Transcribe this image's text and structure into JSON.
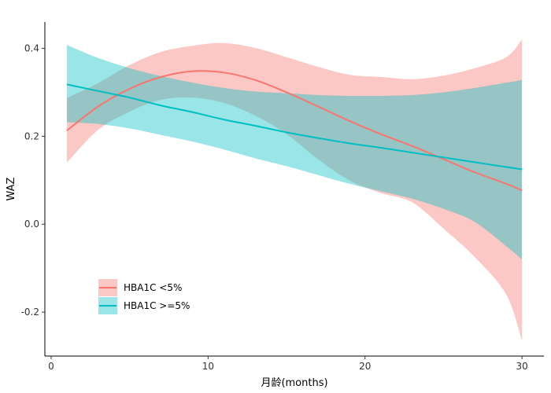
{
  "chart_data": {
    "type": "line",
    "xlabel": "月龄(months)",
    "ylabel": "WAZ",
    "xlim": [
      -0.4,
      31.4
    ],
    "ylim": [
      -0.3,
      0.46
    ],
    "x_ticks": [
      0,
      10,
      20,
      30
    ],
    "y_ticks": [
      -0.2,
      0.0,
      0.2,
      0.4
    ],
    "x_tick_labels": [
      "0",
      "10",
      "20",
      "30"
    ],
    "y_tick_labels": [
      "-0.2",
      "0.0",
      "0.2",
      "0.4"
    ],
    "grid": false,
    "legend_position": "bottom-left",
    "series": [
      {
        "name": "HBA1C <5%",
        "color": "#F8766D",
        "band_color": "#F8766D",
        "x": [
          1,
          3,
          5,
          7,
          9,
          11,
          13,
          15,
          17,
          19,
          21,
          23,
          25,
          27,
          29,
          30
        ],
        "y": [
          0.213,
          0.268,
          0.308,
          0.335,
          0.348,
          0.345,
          0.328,
          0.3,
          0.268,
          0.235,
          0.205,
          0.178,
          0.148,
          0.118,
          0.092,
          0.077
        ],
        "lower": [
          0.14,
          0.215,
          0.256,
          0.283,
          0.288,
          0.276,
          0.247,
          0.205,
          0.148,
          0.1,
          0.071,
          0.05,
          -0.01,
          -0.075,
          -0.16,
          -0.265
        ],
        "upper": [
          0.287,
          0.321,
          0.362,
          0.392,
          0.406,
          0.412,
          0.401,
          0.38,
          0.358,
          0.34,
          0.335,
          0.33,
          0.338,
          0.355,
          0.38,
          0.42
        ]
      },
      {
        "name": "HBA1C >=5%",
        "color": "#00BFC4",
        "band_color": "#00BFC4",
        "x": [
          1,
          3,
          5,
          7,
          9,
          11,
          13,
          15,
          17,
          19,
          21,
          23,
          25,
          27,
          29,
          30
        ],
        "y": [
          0.318,
          0.303,
          0.288,
          0.27,
          0.255,
          0.238,
          0.224,
          0.209,
          0.196,
          0.184,
          0.174,
          0.163,
          0.152,
          0.141,
          0.13,
          0.125
        ],
        "lower": [
          0.232,
          0.228,
          0.218,
          0.203,
          0.188,
          0.17,
          0.15,
          0.132,
          0.112,
          0.092,
          0.075,
          0.058,
          0.035,
          0.005,
          -0.05,
          -0.08
        ],
        "upper": [
          0.408,
          0.378,
          0.355,
          0.337,
          0.322,
          0.31,
          0.302,
          0.298,
          0.294,
          0.292,
          0.292,
          0.294,
          0.3,
          0.31,
          0.322,
          0.328
        ]
      }
    ]
  }
}
